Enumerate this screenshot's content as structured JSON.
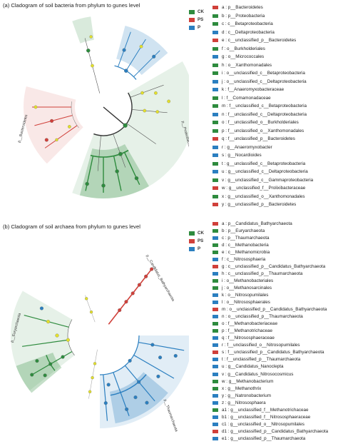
{
  "colors": {
    "CK": "#2e8b3e",
    "PS": "#d0403a",
    "P": "#2b7fc0",
    "none": "#e3e02c"
  },
  "groups": [
    {
      "name": "CK",
      "color": "#2e8b3e"
    },
    {
      "name": "PS",
      "color": "#d0403a"
    },
    {
      "name": "P",
      "color": "#2b7fc0"
    }
  ],
  "panel_a": {
    "title": "(a) Cladogram of soil bacteria from phylum to gunes level",
    "legend": [
      {
        "label": "a : p__Bacteroidetes",
        "group": "PS"
      },
      {
        "label": "b : p__Proteobacteria",
        "group": "CK"
      },
      {
        "label": "c : c__Betaproteobacteria",
        "group": "CK"
      },
      {
        "label": "d : c__Deltaproteobacteria",
        "group": "P"
      },
      {
        "label": "e : c__unclassified_p__Bacteroidetes",
        "group": "PS"
      },
      {
        "label": "f : o__Burkholderiales",
        "group": "CK"
      },
      {
        "label": "g : o__Micrococcales",
        "group": "P"
      },
      {
        "label": "h : o__Xanthomonadales",
        "group": "CK"
      },
      {
        "label": "i : o__unclassified_c__Betaproteobacteria",
        "group": "CK"
      },
      {
        "label": "j : o__unclassified_c__Deltaproteobacteria",
        "group": "P"
      },
      {
        "label": "k : f__Anaeromyxobacteraceae",
        "group": "P"
      },
      {
        "label": "l : f__Comamonadaceae",
        "group": "CK"
      },
      {
        "label": "m : f__unclassified_c__Betaproteobacteria",
        "group": "CK"
      },
      {
        "label": "n : f__unclassified_c__Deltaproteobacteria",
        "group": "P"
      },
      {
        "label": "o : f__unclassified_o__Burkholderiales",
        "group": "CK"
      },
      {
        "label": "p : f__unclassified_o__Xanthomonadales",
        "group": "CK"
      },
      {
        "label": "q : f__unclassified_p__Bacteroidetes",
        "group": "PS"
      },
      {
        "label": "r : g__Anaeromyxobacter",
        "group": "P"
      },
      {
        "label": "s : g__Nocardioides",
        "group": "P"
      },
      {
        "label": "t : g__unclassified_c__Betaproteobacteria",
        "group": "CK"
      },
      {
        "label": "u : g__unclassified_c__Deltaproteobacteria",
        "group": "P"
      },
      {
        "label": "v : g__unclassified_c__Gammaproteobacteria",
        "group": "CK"
      },
      {
        "label": "w : g__unclassified_f__Prolixibacteraceae",
        "group": "PS"
      },
      {
        "label": "x : g__unclassified_o__Xanthomonadales",
        "group": "CK"
      },
      {
        "label": "y : g__unclassified_p__Bacteroidetes",
        "group": "PS"
      }
    ],
    "clade_labels": [
      "p__Bacteroidetes",
      "p__Proteobacteria"
    ]
  },
  "panel_b": {
    "title": "(b) Cladogram of soil archaea from phylum to gunes level",
    "legend": [
      {
        "label": "a : p__Candidatus_Bathyarchaeota",
        "group": "PS"
      },
      {
        "label": "b : p__Euryarchaeota",
        "group": "CK"
      },
      {
        "label": "c : p__Thaumarchaeota",
        "group": "P"
      },
      {
        "label": "d : c__Methanobacteria",
        "group": "CK"
      },
      {
        "label": "e : c__Methanomicrobia",
        "group": "CK"
      },
      {
        "label": "f : c__Nitrososphaeria",
        "group": "P"
      },
      {
        "label": "g : c__unclassified_p__Candidatus_Bathyarchaeota",
        "group": "PS"
      },
      {
        "label": "h : c__unclassified_p__Thaumarchaeota",
        "group": "P"
      },
      {
        "label": "i : o__Methanobacteriales",
        "group": "CK"
      },
      {
        "label": "j : o__Methanosarcinales",
        "group": "CK"
      },
      {
        "label": "k : o__Nitrosopumilales",
        "group": "P"
      },
      {
        "label": "l : o__Nitrososphaerales",
        "group": "P"
      },
      {
        "label": "m : o__unclassified_p__Candidatus_Bathyarchaeota",
        "group": "PS"
      },
      {
        "label": "n : o__unclassified_p__Thaumarchaeota",
        "group": "P"
      },
      {
        "label": "o : f__Methanobacteriaceae",
        "group": "CK"
      },
      {
        "label": "p : f__Methanotrichaceae",
        "group": "CK"
      },
      {
        "label": "q : f__Nitrososphaeraceae",
        "group": "P"
      },
      {
        "label": "r : f__unclassified_o__Nitrosopumilales",
        "group": "P"
      },
      {
        "label": "s : f__unclassified_p__Candidatus_Bathyarchaeota",
        "group": "PS"
      },
      {
        "label": "t : f__unclassified_p__Thaumarchaeota",
        "group": "P"
      },
      {
        "label": "u : g__Candidatus_Nanoclepta",
        "group": "P"
      },
      {
        "label": "v : g__Candidatus_Nitrosocosmicus",
        "group": "P"
      },
      {
        "label": "w : g__Methanobacterium",
        "group": "CK"
      },
      {
        "label": "x : g__Methanothrix",
        "group": "CK"
      },
      {
        "label": "y : g__Natronobacterium",
        "group": "P"
      },
      {
        "label": "z : g__Nitrososphaera",
        "group": "P"
      },
      {
        "label": "a1 : g__unclassified_f__Methanotrichaceae",
        "group": "CK"
      },
      {
        "label": "b1 : g__unclassified_f__Nitrososphaeraceae",
        "group": "P"
      },
      {
        "label": "c1 : g__unclassified_o__Nitrosopumilales",
        "group": "P"
      },
      {
        "label": "d1 : g__unclassified_p__Candidatus_Bathyarchaeota",
        "group": "PS"
      },
      {
        "label": "e1 : g__unclassified_p__Thaumarchaeota",
        "group": "P"
      }
    ],
    "clade_labels": [
      "p__Candidatus_Bathyarchaeota",
      "p__Euryarchaeota",
      "p__Thaumarchaeota"
    ]
  },
  "chart_data": [
    {
      "type": "cladogram",
      "title": "(a) Cladogram of soil bacteria from phylum to gunes level",
      "groups": [
        "CK",
        "PS",
        "P"
      ],
      "clades": [
        {
          "label": "p__Bacteroidetes",
          "group": "PS",
          "letters": [
            "a",
            "e",
            "q",
            "w",
            "y"
          ]
        },
        {
          "label": "p__Proteobacteria",
          "group": "CK",
          "letters": [
            "b",
            "c",
            "f",
            "h",
            "i",
            "l",
            "m",
            "o",
            "p",
            "t",
            "v",
            "x"
          ]
        },
        {
          "label": "",
          "group": "P",
          "letters": [
            "d",
            "j",
            "k",
            "n",
            "r",
            "u"
          ]
        },
        {
          "label": "",
          "group": "P",
          "letters": [
            "g",
            "s"
          ]
        }
      ]
    },
    {
      "type": "cladogram",
      "title": "(b) Cladogram of soil archaea from phylum to gunes level",
      "groups": [
        "CK",
        "PS",
        "P"
      ],
      "clades": [
        {
          "label": "p__Candidatus_Bathyarchaeota",
          "group": "PS",
          "letters": [
            "a",
            "g",
            "m",
            "s",
            "d1"
          ]
        },
        {
          "label": "p__Euryarchaeota",
          "group": "CK",
          "letters": [
            "b",
            "d",
            "e",
            "i",
            "j",
            "o",
            "p",
            "w",
            "x",
            "a1"
          ]
        },
        {
          "label": "p__Thaumarchaeota",
          "group": "P",
          "letters": [
            "c",
            "f",
            "h",
            "k",
            "l",
            "n",
            "q",
            "r",
            "t",
            "u",
            "v",
            "y",
            "z",
            "b1",
            "c1",
            "e1"
          ]
        }
      ]
    }
  ]
}
